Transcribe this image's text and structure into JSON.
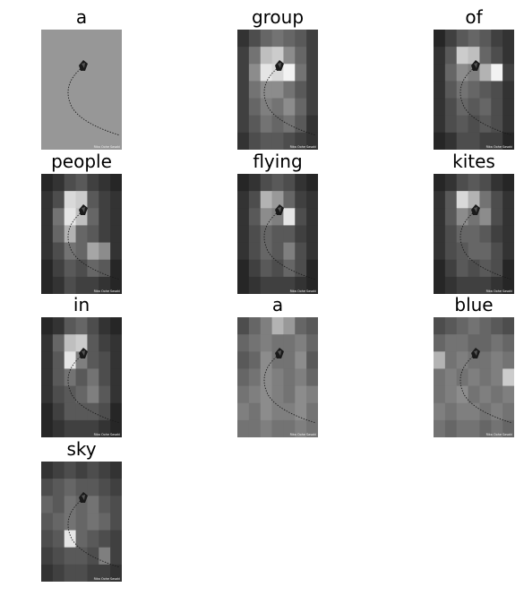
{
  "words": [
    "a",
    "group",
    "of",
    "people",
    "flying",
    "kites",
    "in",
    "a",
    "blue",
    "sky"
  ],
  "colors": {
    "background": "#ffffff",
    "text": "#000000",
    "panel_dark": "#111111",
    "panel_light": "#f2f2f2",
    "kite_line": "#1a1a1a"
  },
  "panels": [
    {
      "type": "original",
      "grid": []
    },
    {
      "type": "attention",
      "grid": [
        [
          20,
          30,
          40,
          45,
          40,
          35,
          25
        ],
        [
          25,
          45,
          75,
          80,
          55,
          40,
          25
        ],
        [
          25,
          55,
          90,
          85,
          95,
          45,
          25
        ],
        [
          25,
          45,
          55,
          55,
          45,
          35,
          25
        ],
        [
          25,
          40,
          50,
          45,
          55,
          40,
          25
        ],
        [
          25,
          35,
          45,
          40,
          45,
          35,
          20
        ],
        [
          20,
          30,
          35,
          35,
          30,
          25,
          20
        ]
      ]
    },
    {
      "type": "attention",
      "grid": [
        [
          15,
          25,
          35,
          40,
          35,
          25,
          20
        ],
        [
          20,
          35,
          80,
          75,
          40,
          30,
          20
        ],
        [
          20,
          40,
          55,
          50,
          70,
          95,
          25
        ],
        [
          20,
          35,
          45,
          40,
          35,
          30,
          20
        ],
        [
          20,
          30,
          40,
          35,
          40,
          30,
          20
        ],
        [
          20,
          30,
          35,
          30,
          35,
          30,
          20
        ],
        [
          15,
          20,
          30,
          30,
          25,
          25,
          15
        ]
      ]
    },
    {
      "type": "attention",
      "grid": [
        [
          15,
          20,
          30,
          35,
          25,
          20,
          15
        ],
        [
          20,
          30,
          85,
          80,
          35,
          25,
          20
        ],
        [
          20,
          45,
          90,
          75,
          40,
          25,
          20
        ],
        [
          20,
          40,
          70,
          40,
          35,
          25,
          20
        ],
        [
          20,
          30,
          45,
          40,
          65,
          55,
          20
        ],
        [
          15,
          25,
          35,
          30,
          40,
          35,
          15
        ],
        [
          15,
          20,
          30,
          25,
          25,
          20,
          15
        ]
      ]
    },
    {
      "type": "attention",
      "grid": [
        [
          15,
          20,
          30,
          35,
          30,
          20,
          15
        ],
        [
          20,
          30,
          70,
          60,
          40,
          25,
          20
        ],
        [
          20,
          35,
          55,
          50,
          90,
          30,
          20
        ],
        [
          20,
          30,
          40,
          35,
          35,
          25,
          20
        ],
        [
          20,
          30,
          40,
          35,
          50,
          30,
          20
        ],
        [
          15,
          25,
          35,
          30,
          40,
          30,
          15
        ],
        [
          15,
          20,
          25,
          25,
          25,
          20,
          15
        ]
      ]
    },
    {
      "type": "attention",
      "grid": [
        [
          15,
          20,
          30,
          35,
          30,
          20,
          15
        ],
        [
          20,
          35,
          85,
          70,
          45,
          30,
          20
        ],
        [
          20,
          35,
          55,
          45,
          55,
          30,
          20
        ],
        [
          20,
          30,
          40,
          40,
          35,
          25,
          20
        ],
        [
          20,
          30,
          35,
          40,
          40,
          30,
          20
        ],
        [
          15,
          25,
          35,
          30,
          35,
          30,
          15
        ],
        [
          15,
          20,
          25,
          25,
          25,
          20,
          15
        ]
      ]
    },
    {
      "type": "attention",
      "grid": [
        [
          15,
          20,
          35,
          40,
          30,
          20,
          15
        ],
        [
          20,
          40,
          75,
          80,
          35,
          25,
          20
        ],
        [
          20,
          35,
          90,
          50,
          35,
          30,
          20
        ],
        [
          20,
          35,
          45,
          35,
          45,
          30,
          20
        ],
        [
          20,
          30,
          35,
          40,
          50,
          35,
          20
        ],
        [
          15,
          25,
          35,
          35,
          35,
          30,
          15
        ],
        [
          15,
          20,
          25,
          25,
          25,
          20,
          15
        ]
      ]
    },
    {
      "type": "attention",
      "grid": [
        [
          30,
          40,
          50,
          70,
          60,
          40,
          35
        ],
        [
          40,
          45,
          50,
          45,
          45,
          50,
          40
        ],
        [
          35,
          40,
          55,
          45,
          45,
          55,
          35
        ],
        [
          40,
          45,
          55,
          50,
          45,
          50,
          40
        ],
        [
          45,
          50,
          55,
          50,
          45,
          55,
          50
        ],
        [
          50,
          45,
          55,
          50,
          50,
          55,
          45
        ],
        [
          45,
          45,
          50,
          45,
          45,
          50,
          45
        ]
      ]
    },
    {
      "type": "attention",
      "grid": [
        [
          30,
          35,
          40,
          45,
          40,
          35,
          30
        ],
        [
          40,
          45,
          45,
          40,
          40,
          45,
          40
        ],
        [
          70,
          45,
          50,
          45,
          45,
          50,
          45
        ],
        [
          45,
          50,
          45,
          50,
          45,
          50,
          80
        ],
        [
          45,
          50,
          55,
          45,
          50,
          45,
          50
        ],
        [
          50,
          45,
          50,
          50,
          45,
          50,
          45
        ],
        [
          45,
          40,
          45,
          45,
          40,
          45,
          40
        ]
      ]
    },
    {
      "type": "attention",
      "grid": [
        [
          20,
          25,
          30,
          25,
          30,
          25,
          20
        ],
        [
          30,
          35,
          40,
          35,
          35,
          30,
          25
        ],
        [
          40,
          35,
          45,
          40,
          45,
          35,
          30
        ],
        [
          35,
          40,
          45,
          40,
          45,
          40,
          30
        ],
        [
          30,
          35,
          90,
          40,
          35,
          30,
          25
        ],
        [
          25,
          30,
          35,
          35,
          30,
          50,
          25
        ],
        [
          20,
          25,
          30,
          30,
          25,
          25,
          20
        ]
      ]
    }
  ],
  "watermark": "Rika Oohe Sasaki"
}
